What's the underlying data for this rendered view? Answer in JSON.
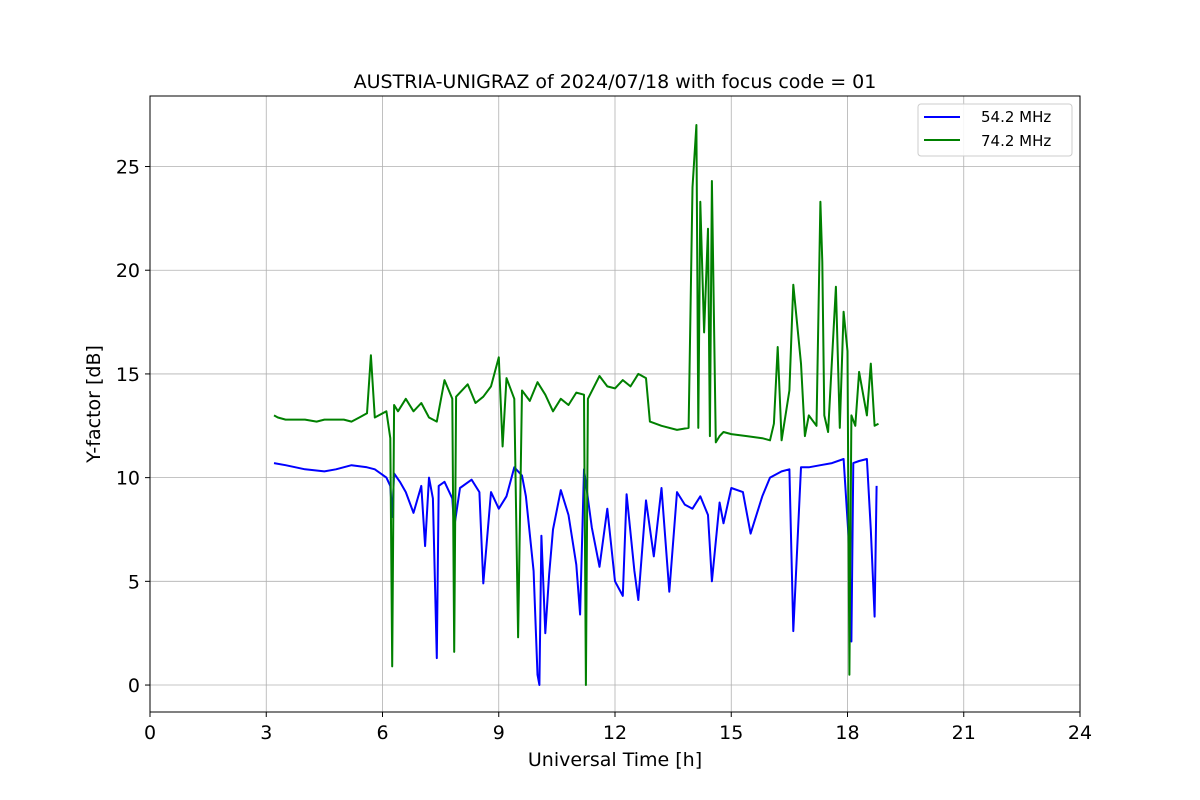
{
  "chart_data": {
    "type": "line",
    "title": "AUSTRIA-UNIGRAZ of 2024/07/18 with focus code = 01",
    "xlabel": "Universal Time [h]",
    "ylabel": "Y-factor [dB]",
    "xlim": [
      0,
      24
    ],
    "ylim": [
      -1.3,
      28.4
    ],
    "xticks": [
      0,
      3,
      6,
      9,
      12,
      15,
      18,
      21,
      24
    ],
    "yticks": [
      0,
      5,
      10,
      15,
      20,
      25
    ],
    "grid": true,
    "legend_position": "top-right",
    "series": [
      {
        "name": "54.2 MHz",
        "color": "#0000ff",
        "x": [
          3.2,
          3.5,
          4.0,
          4.5,
          4.8,
          5.2,
          5.6,
          5.8,
          6.1,
          6.2,
          6.25,
          6.3,
          6.45,
          6.6,
          6.8,
          7.0,
          7.1,
          7.2,
          7.3,
          7.4,
          7.45,
          7.6,
          7.8,
          7.85,
          8.0,
          8.3,
          8.5,
          8.6,
          8.8,
          9.0,
          9.2,
          9.4,
          9.6,
          9.7,
          9.9,
          10.0,
          10.05,
          10.1,
          10.2,
          10.3,
          10.4,
          10.6,
          10.8,
          11.0,
          11.1,
          11.2,
          11.4,
          11.6,
          11.8,
          12.0,
          12.2,
          12.3,
          12.5,
          12.6,
          12.8,
          13.0,
          13.2,
          13.4,
          13.6,
          13.8,
          14.0,
          14.2,
          14.4,
          14.5,
          14.7,
          14.8,
          15.0,
          15.3,
          15.5,
          15.8,
          16.0,
          16.3,
          16.5,
          16.6,
          16.8,
          17.0,
          17.3,
          17.6,
          17.9,
          18.05,
          18.1,
          18.15,
          18.3,
          18.5,
          18.6,
          18.7,
          18.75
        ],
        "values": [
          10.7,
          10.6,
          10.4,
          10.3,
          10.4,
          10.6,
          10.5,
          10.4,
          10.0,
          9.6,
          8.1,
          10.2,
          9.8,
          9.3,
          8.3,
          9.6,
          6.7,
          10.0,
          9.0,
          1.3,
          9.6,
          9.8,
          9.0,
          7.6,
          9.5,
          9.9,
          9.3,
          4.9,
          9.3,
          8.5,
          9.1,
          10.5,
          10.1,
          9.1,
          5.5,
          0.5,
          0.0,
          7.2,
          2.5,
          5.3,
          7.5,
          9.4,
          8.2,
          5.8,
          3.4,
          10.4,
          7.6,
          5.7,
          8.5,
          5.0,
          4.3,
          9.2,
          5.5,
          4.1,
          8.9,
          6.2,
          9.5,
          4.5,
          9.3,
          8.7,
          8.5,
          9.1,
          8.2,
          5.0,
          8.8,
          7.8,
          9.5,
          9.3,
          7.3,
          9.1,
          10.0,
          10.3,
          10.4,
          2.6,
          10.5,
          10.5,
          10.6,
          10.7,
          10.9,
          6.5,
          2.1,
          10.7,
          10.8,
          10.9,
          7.5,
          3.3,
          9.6
        ]
      },
      {
        "name": "74.2 MHz",
        "color": "#008000",
        "x": [
          3.2,
          3.3,
          3.5,
          4.0,
          4.3,
          4.5,
          5.0,
          5.2,
          5.4,
          5.6,
          5.7,
          5.8,
          6.1,
          6.2,
          6.25,
          6.3,
          6.4,
          6.6,
          6.8,
          7.0,
          7.2,
          7.4,
          7.6,
          7.8,
          7.85,
          7.9,
          8.2,
          8.4,
          8.6,
          8.8,
          9.0,
          9.1,
          9.2,
          9.4,
          9.5,
          9.6,
          9.8,
          10.0,
          10.2,
          10.4,
          10.6,
          10.8,
          11.0,
          11.2,
          11.25,
          11.3,
          11.6,
          11.8,
          12.0,
          12.2,
          12.4,
          12.6,
          12.8,
          12.9,
          13.2,
          13.6,
          13.9,
          14.0,
          14.1,
          14.15,
          14.2,
          14.3,
          14.4,
          14.45,
          14.5,
          14.6,
          14.7,
          14.8,
          15.0,
          15.4,
          15.8,
          16.0,
          16.1,
          16.2,
          16.3,
          16.5,
          16.6,
          16.8,
          16.9,
          17.0,
          17.2,
          17.3,
          17.35,
          17.4,
          17.5,
          17.7,
          17.8,
          17.9,
          18.0,
          18.05,
          18.1,
          18.2,
          18.3,
          18.5,
          18.6,
          18.7,
          18.8
        ],
        "values": [
          13.0,
          12.9,
          12.8,
          12.8,
          12.7,
          12.8,
          12.8,
          12.7,
          12.9,
          13.1,
          15.9,
          12.9,
          13.2,
          11.9,
          0.9,
          13.5,
          13.2,
          13.8,
          13.2,
          13.6,
          12.9,
          12.7,
          14.7,
          13.8,
          1.6,
          13.9,
          14.5,
          13.6,
          13.9,
          14.4,
          15.8,
          11.5,
          14.8,
          13.8,
          2.3,
          14.2,
          13.7,
          14.6,
          14.0,
          13.2,
          13.8,
          13.5,
          14.1,
          14.0,
          0.0,
          13.8,
          14.9,
          14.4,
          14.3,
          14.7,
          14.4,
          15.0,
          14.8,
          12.7,
          12.5,
          12.3,
          12.4,
          24.0,
          27.0,
          12.4,
          23.3,
          17.0,
          22.0,
          12.0,
          24.3,
          11.7,
          12.0,
          12.2,
          12.1,
          12.0,
          11.9,
          11.8,
          12.6,
          16.3,
          11.8,
          14.2,
          19.3,
          15.5,
          12.0,
          13.0,
          12.5,
          23.3,
          20.4,
          13.0,
          12.2,
          19.2,
          12.4,
          18.0,
          16.1,
          0.5,
          13.0,
          12.5,
          15.1,
          13.0,
          15.5,
          12.5,
          12.6
        ]
      }
    ]
  }
}
